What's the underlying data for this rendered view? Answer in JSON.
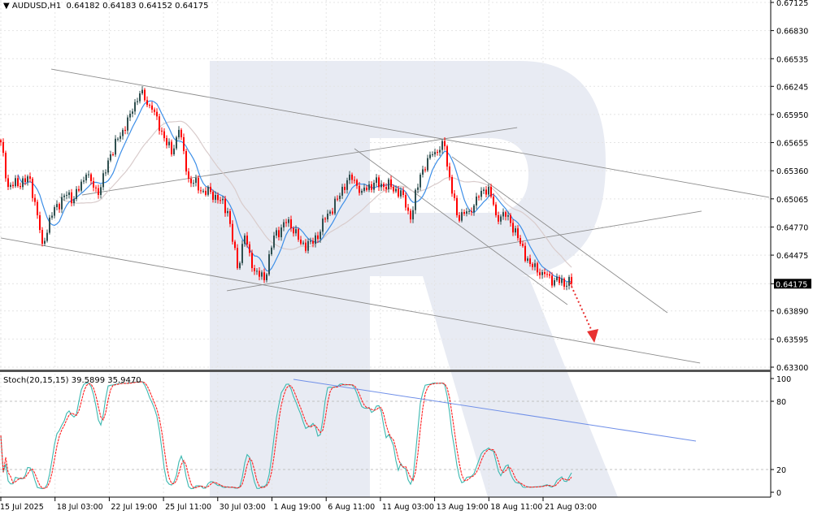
{
  "header": {
    "symbol_icon": "triangle-down-icon",
    "symbol": "AUDUSD,H1",
    "ohlc": "0.64182 0.64183 0.64152 0.64175"
  },
  "stoch_header": "Stoch(20,15,15) 39.5899 35.9470",
  "colors": {
    "bull": "#2f4f4f",
    "bear": "#ff0000",
    "fast_ma": "#3d8fe8",
    "slow_ma": "#d9cccc",
    "trendline": "#8c8c8c",
    "stoch_main": "#3cb8b0",
    "stoch_signal": "#ff2020",
    "stoch_trendline": "#6f8fe8",
    "forecast_arrow": "#e83030",
    "watermark": "#e8ebf3"
  },
  "chart_data": {
    "type": "candlestick",
    "instrument": "AUDUSD",
    "timeframe": "H1",
    "current_price": "0.64175",
    "ylim": [
      0.633,
      0.67125
    ],
    "price_ticks": [
      "0.67125",
      "0.66830",
      "0.66535",
      "0.66245",
      "0.65950",
      "0.65655",
      "0.65360",
      "0.65065",
      "0.64770",
      "0.64475",
      "0.64175",
      "0.63890",
      "0.63595",
      "0.63300"
    ],
    "time_ticks": [
      "15 Jul 2025",
      "18 Jul 03:00",
      "22 Jul 19:00",
      "25 Jul 11:00",
      "30 Jul 03:00",
      "1 Aug 19:00",
      "6 Aug 11:00",
      "11 Aug 03:00",
      "13 Aug 19:00",
      "18 Aug 11:00",
      "21 Aug 03:00"
    ],
    "close_path": [
      [
        0,
        0.6566
      ],
      [
        3,
        0.65191
      ],
      [
        12,
        0.65276
      ],
      [
        15,
        0.64893
      ],
      [
        17,
        0.64595
      ],
      [
        22,
        0.64978
      ],
      [
        27,
        0.65106
      ],
      [
        30,
        0.65064
      ],
      [
        35,
        0.65319
      ],
      [
        40,
        0.65106
      ],
      [
        45,
        0.65532
      ],
      [
        50,
        0.65788
      ],
      [
        53,
        0.65958
      ],
      [
        57,
        0.66171
      ],
      [
        62,
        0.66001
      ],
      [
        67,
        0.65702
      ],
      [
        70,
        0.65532
      ],
      [
        73,
        0.65788
      ],
      [
        77,
        0.65276
      ],
      [
        83,
        0.65149
      ],
      [
        88,
        0.65106
      ],
      [
        93,
        0.64936
      ],
      [
        97,
        0.64339
      ],
      [
        100,
        0.6468
      ],
      [
        103,
        0.64339
      ],
      [
        108,
        0.64212
      ],
      [
        112,
        0.6468
      ],
      [
        115,
        0.64765
      ],
      [
        118,
        0.6485
      ],
      [
        123,
        0.64595
      ],
      [
        128,
        0.64595
      ],
      [
        133,
        0.6485
      ],
      [
        138,
        0.65064
      ],
      [
        143,
        0.65319
      ],
      [
        148,
        0.65149
      ],
      [
        153,
        0.65234
      ],
      [
        160,
        0.65191
      ],
      [
        165,
        0.65106
      ],
      [
        168,
        0.6485
      ],
      [
        172,
        0.65319
      ],
      [
        177,
        0.65532
      ],
      [
        182,
        0.65617
      ],
      [
        183,
        0.65404
      ],
      [
        187,
        0.64893
      ],
      [
        192,
        0.64936
      ],
      [
        197,
        0.65149
      ],
      [
        200,
        0.65191
      ],
      [
        203,
        0.64893
      ],
      [
        208,
        0.64893
      ],
      [
        213,
        0.64595
      ],
      [
        217,
        0.64382
      ],
      [
        222,
        0.64297
      ],
      [
        227,
        0.64212
      ],
      [
        234,
        0.64175
      ]
    ],
    "trendlines": [
      {
        "name": "upper-channel-line",
        "from": [
          20.7,
          0.66426
        ],
        "to": [
          315,
          0.65081
        ]
      },
      {
        "name": "lower-channel-line",
        "from": [
          0,
          0.64655
        ],
        "to": [
          286.7,
          0.63343
        ]
      },
      {
        "name": "rising-line-upper",
        "from": [
          33.3,
          0.65106
        ],
        "to": [
          211.7,
          0.65813
        ]
      },
      {
        "name": "rising-line-lower",
        "from": [
          92.7,
          0.64101
        ],
        "to": [
          287.3,
          0.64936
        ]
      },
      {
        "name": "falling-channel-lower",
        "from": [
          145,
          0.65592
        ],
        "to": [
          232.3,
          0.63956
        ]
      },
      {
        "name": "falling-channel-upper",
        "from": [
          185,
          0.65506
        ],
        "to": [
          273.3,
          0.63871
        ]
      }
    ],
    "forecast_arrow": {
      "from": [
        233.3,
        0.64186
      ],
      "to": [
        242.7,
        0.63573
      ]
    },
    "indicator": {
      "name": "Stoch",
      "levels": [
        "100",
        "80",
        "20",
        "0"
      ],
      "ylim": [
        0,
        100
      ],
      "trendline": {
        "from": [
          120,
          99.3
        ],
        "to": [
          285,
          45
        ]
      }
    }
  }
}
